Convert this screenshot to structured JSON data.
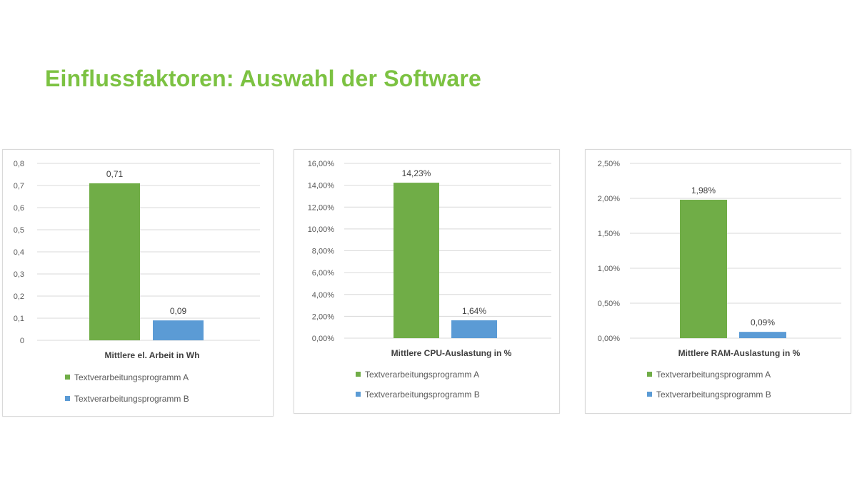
{
  "slide": {
    "title": "Einflussfaktoren: Auswahl der Software",
    "title_color": "#7cc242"
  },
  "colors": {
    "series_a": "#70ad47",
    "series_b": "#5b9bd5",
    "grid": "#d9d9d9",
    "axis_text": "#595959",
    "label_text": "#404040"
  },
  "chart_data": [
    {
      "type": "bar",
      "title": "",
      "categories": [
        "Mittlere el. Arbeit in Wh"
      ],
      "xlabel": "Mittlere el. Arbeit in Wh",
      "ylabel": "",
      "ylim": [
        0,
        0.8
      ],
      "yticks": [
        0,
        0.1,
        0.2,
        0.3,
        0.4,
        0.5,
        0.6,
        0.7,
        0.8
      ],
      "ytick_labels": [
        "0",
        "0,1",
        "0,2",
        "0,3",
        "0,4",
        "0,5",
        "0,6",
        "0,7",
        "0,8"
      ],
      "series": [
        {
          "name": "Textverarbeitungsprogramm A",
          "values": [
            0.71
          ],
          "labels": [
            "0,71"
          ],
          "color": "#70ad47"
        },
        {
          "name": "Textverarbeitungsprogramm B",
          "values": [
            0.09
          ],
          "labels": [
            "0,09"
          ],
          "color": "#5b9bd5"
        }
      ],
      "grid": true,
      "legend": "bottom"
    },
    {
      "type": "bar",
      "title": "",
      "categories": [
        "Mittlere CPU-Auslastung in %"
      ],
      "xlabel": "Mittlere CPU-Auslastung in %",
      "ylabel": "",
      "ylim": [
        0,
        16
      ],
      "yticks": [
        0,
        2,
        4,
        6,
        8,
        10,
        12,
        14,
        16
      ],
      "ytick_labels": [
        "0,00%",
        "2,00%",
        "4,00%",
        "6,00%",
        "8,00%",
        "10,00%",
        "12,00%",
        "14,00%",
        "16,00%"
      ],
      "series": [
        {
          "name": "Textverarbeitungsprogramm A",
          "values": [
            14.23
          ],
          "labels": [
            "14,23%"
          ],
          "color": "#70ad47"
        },
        {
          "name": "Textverarbeitungsprogramm B",
          "values": [
            1.64
          ],
          "labels": [
            "1,64%"
          ],
          "color": "#5b9bd5"
        }
      ],
      "grid": true,
      "legend": "bottom"
    },
    {
      "type": "bar",
      "title": "",
      "categories": [
        "Mittlere RAM-Auslastung in %"
      ],
      "xlabel": "Mittlere RAM-Auslastung in %",
      "ylabel": "",
      "ylim": [
        0,
        2.5
      ],
      "yticks": [
        0,
        0.5,
        1,
        1.5,
        2,
        2.5
      ],
      "ytick_labels": [
        "0,00%",
        "0,50%",
        "1,00%",
        "1,50%",
        "2,00%",
        "2,50%"
      ],
      "series": [
        {
          "name": "Textverarbeitungsprogramm A",
          "values": [
            1.98
          ],
          "labels": [
            "1,98%"
          ],
          "color": "#70ad47"
        },
        {
          "name": "Textverarbeitungsprogramm B",
          "values": [
            0.09
          ],
          "labels": [
            "0,09%"
          ],
          "color": "#5b9bd5"
        }
      ],
      "grid": true,
      "legend": "bottom"
    }
  ]
}
